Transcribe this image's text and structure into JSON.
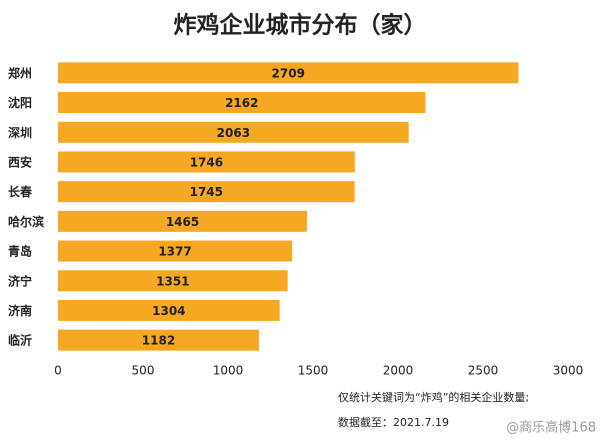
{
  "chart_data": {
    "type": "bar",
    "orientation": "horizontal",
    "title": "炸鸡企业城市分布（家）",
    "categories": [
      "郑州",
      "沈阳",
      "深圳",
      "西安",
      "长春",
      "哈尔滨",
      "青岛",
      "济宁",
      "济南",
      "临沂"
    ],
    "values": [
      2709,
      2162,
      2063,
      1746,
      1745,
      1465,
      1377,
      1351,
      1304,
      1182
    ],
    "color": "#f7a823",
    "xlim": [
      0,
      3000
    ],
    "xticks": [
      0,
      500,
      1000,
      1500,
      2000,
      2500,
      3000
    ],
    "notes": [
      "仅统计关键词为“炸鸡”的相关企业数量;",
      "数据截至：2021.7.19"
    ],
    "watermark": "@商乐高博168"
  }
}
